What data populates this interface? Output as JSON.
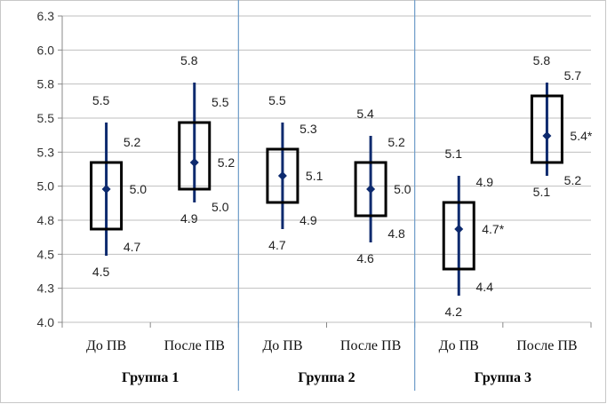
{
  "chart_data": {
    "type": "boxplot",
    "title": "",
    "xlabel": "",
    "ylabel": "",
    "ylim": [
      4.0,
      6.3
    ],
    "y_ticks": [
      "4.0",
      "4.3",
      "4.5",
      "4.8",
      "5.0",
      "5.3",
      "5.5",
      "5.8",
      "6.0",
      "6.3"
    ],
    "grid": "horizontal",
    "colors": {
      "whisker": "#0d2a6e",
      "box": "#000000",
      "grid": "#bfbfbf",
      "separator": "#6c9bc8"
    },
    "groups": [
      {
        "name": "Группа 1",
        "items": [
          {
            "category": "До ПВ",
            "min": 4.5,
            "q1": 4.7,
            "median": 5.0,
            "q3": 5.2,
            "max": 5.5,
            "labels": {
              "max": "5.5",
              "q3": "5.2",
              "median": "5.0",
              "q1": "4.7",
              "min": "4.5"
            }
          },
          {
            "category": "После ПВ",
            "min": 4.9,
            "q1": 5.0,
            "median": 5.2,
            "q3": 5.5,
            "max": 5.8,
            "labels": {
              "max": "5.8",
              "q3": "5.5",
              "median": "5.2",
              "q1": "5.0",
              "min": "4.9"
            }
          }
        ]
      },
      {
        "name": "Группа 2",
        "items": [
          {
            "category": "До ПВ",
            "min": 4.7,
            "q1": 4.9,
            "median": 5.1,
            "q3": 5.3,
            "max": 5.5,
            "labels": {
              "max": "5.5",
              "q3": "5.3",
              "median": "5.1",
              "q1": "4.9",
              "min": "4.7"
            }
          },
          {
            "category": "После ПВ",
            "min": 4.6,
            "q1": 4.8,
            "median": 5.0,
            "q3": 5.2,
            "max": 5.4,
            "labels": {
              "max": "5.4",
              "q3": "5.2",
              "median": "5.0",
              "q1": "4.8",
              "min": "4.6"
            }
          }
        ]
      },
      {
        "name": "Группа 3",
        "items": [
          {
            "category": "До ПВ",
            "min": 4.2,
            "q1": 4.4,
            "median": 4.7,
            "q3": 4.9,
            "max": 5.1,
            "labels": {
              "max": "5.1",
              "q3": "4.9",
              "median": "4.7*",
              "q1": "4.4",
              "min": "4.2"
            }
          },
          {
            "category": "После ПВ",
            "min": 5.1,
            "q1": 5.2,
            "median": 5.4,
            "q3": 5.7,
            "max": 5.8,
            "labels": {
              "max": "5.8",
              "q3": "5.7",
              "median": "5.4*",
              "q1": "5.2",
              "min": "5.1"
            }
          }
        ]
      }
    ]
  }
}
